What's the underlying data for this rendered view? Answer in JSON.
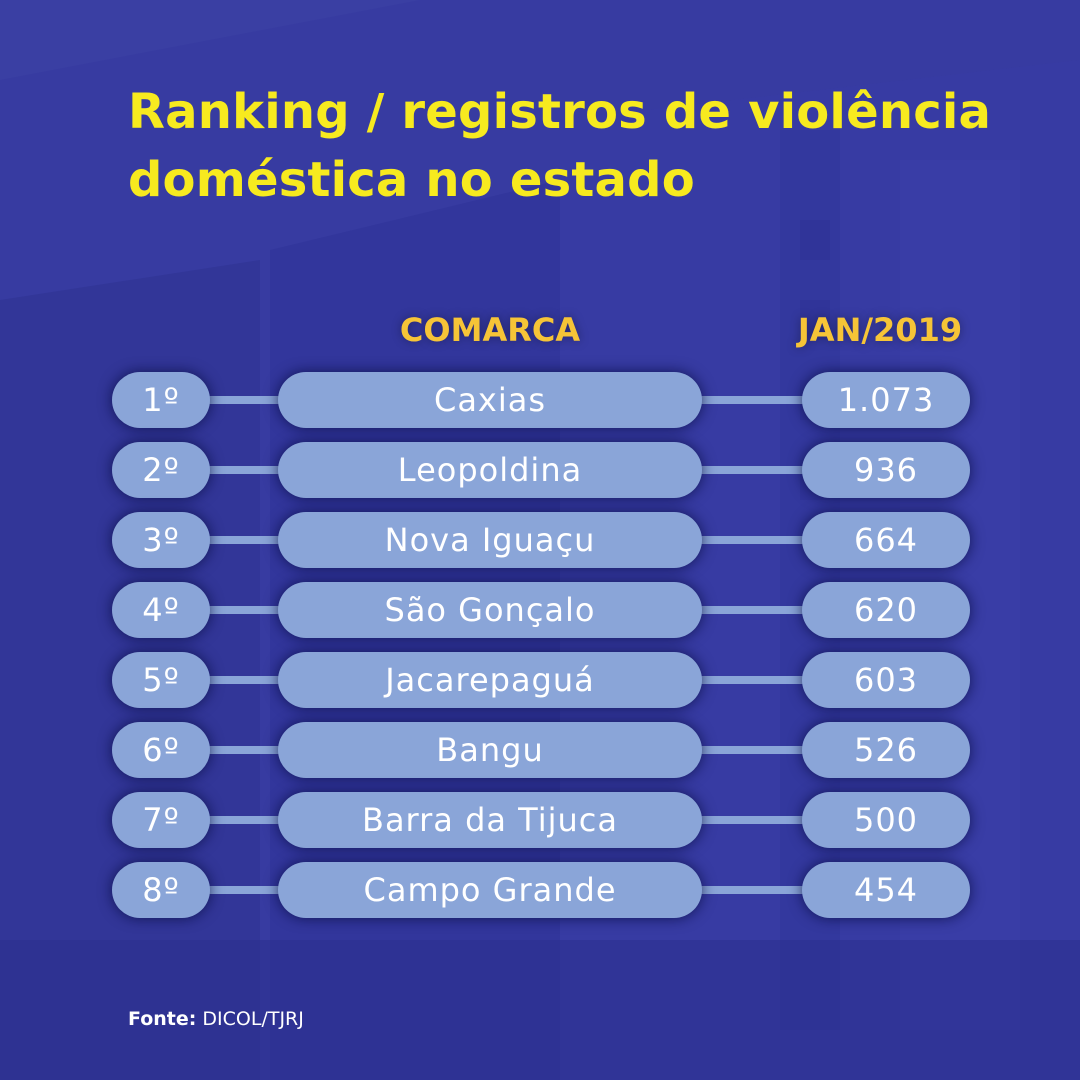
{
  "title": {
    "line1": "Ranking / registros de violência",
    "line2": "doméstica no estado"
  },
  "chart_data": {
    "type": "table",
    "title": "Ranking / registros de violência doméstica no estado",
    "columns": [
      "COMARCA",
      "JAN/2019"
    ],
    "rows": [
      {
        "rank": "1º",
        "comarca": "Caxias",
        "value": "1.073"
      },
      {
        "rank": "2º",
        "comarca": "Leopoldina",
        "value": "936"
      },
      {
        "rank": "3º",
        "comarca": "Nova Iguaçu",
        "value": "664"
      },
      {
        "rank": "4º",
        "comarca": "São Gonçalo",
        "value": "620"
      },
      {
        "rank": "5º",
        "comarca": "Jacarepaguá",
        "value": "603"
      },
      {
        "rank": "6º",
        "comarca": "Bangu",
        "value": "526"
      },
      {
        "rank": "7º",
        "comarca": "Barra da Tijuca",
        "value": "500"
      },
      {
        "rank": "8º",
        "comarca": "Campo Grande",
        "value": "454"
      }
    ]
  },
  "footer": {
    "label": "Fonte:",
    "source": "DICOL/TJRJ"
  },
  "colors": {
    "background": "#3a3fa3",
    "title": "#f7ea1f",
    "header": "#f6c437",
    "pill": "#8aa5d8",
    "text": "#ffffff"
  }
}
